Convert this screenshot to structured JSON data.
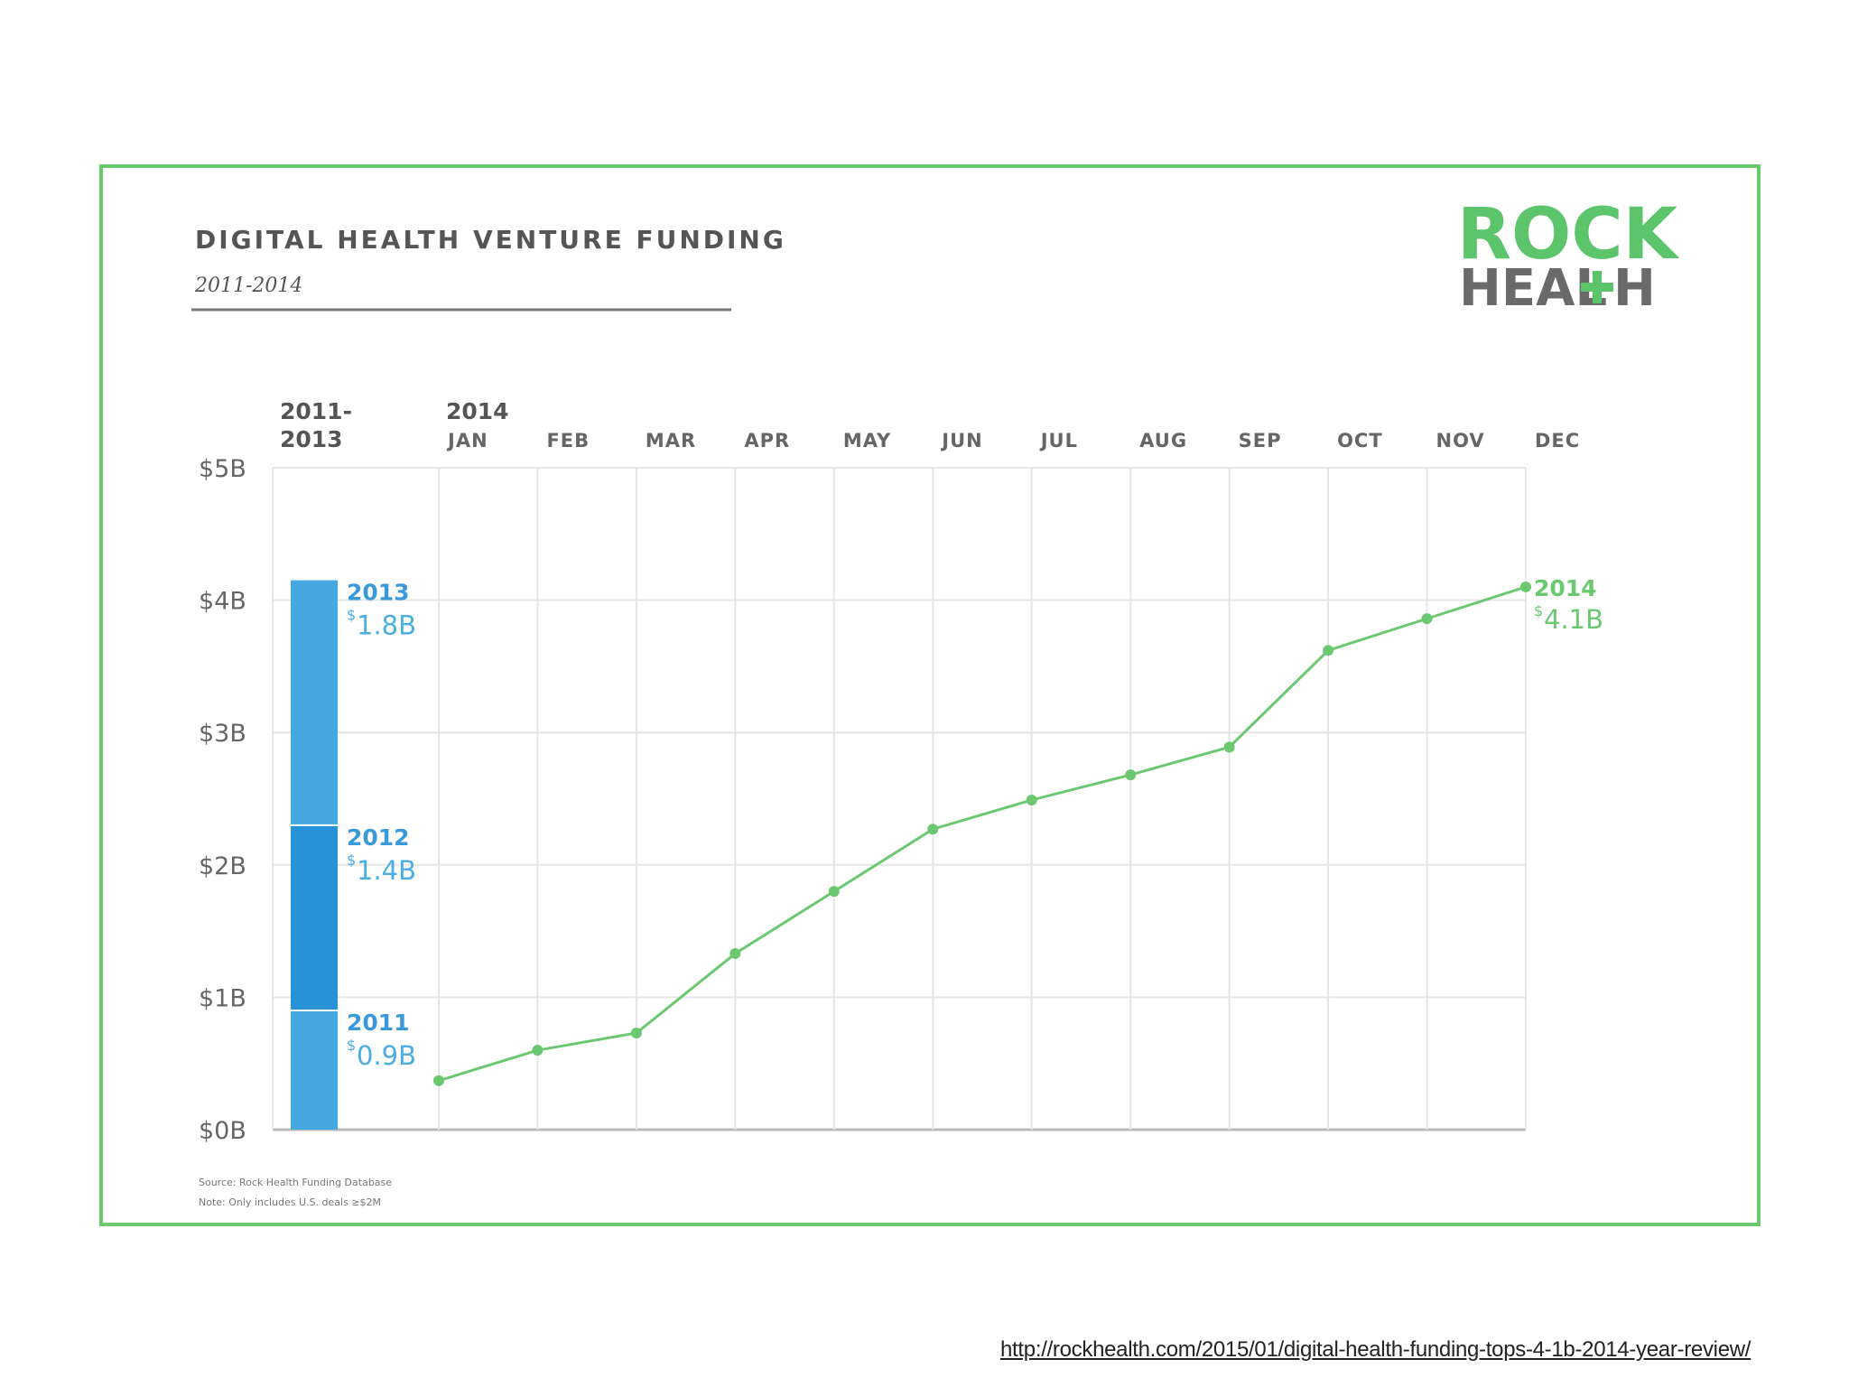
{
  "chart_data": {
    "type": "line",
    "title": "DIGITAL HEALTH VENTURE FUNDING",
    "subtitle": "2011-2014",
    "y_ticks": [
      "$5B",
      "$4B",
      "$3B",
      "$2B",
      "$1B",
      "$0B"
    ],
    "ylim": [
      0,
      5
    ],
    "col_header_stack": [
      "2011-",
      "2013"
    ],
    "col_header_line": "2014",
    "categories": [
      "JAN",
      "FEB",
      "MAR",
      "APR",
      "MAY",
      "JUN",
      "JUL",
      "AUG",
      "SEP",
      "OCT",
      "NOV",
      "DEC"
    ],
    "series": [
      {
        "values": [
          0.37,
          0.6,
          0.73,
          1.33,
          1.8,
          2.27,
          2.49,
          2.68,
          2.89,
          3.62,
          3.86,
          4.1
        ],
        "color": "#6cc870"
      }
    ],
    "end_label": {
      "year": "2014",
      "currency": "$",
      "amount": "4.1B"
    },
    "stacked_bar": {
      "segments": [
        {
          "year": "2011",
          "currency": "$",
          "amount": "0.9B",
          "value": 0.9,
          "color": "#45a9e0"
        },
        {
          "year": "2012",
          "currency": "$",
          "amount": "1.4B",
          "value": 1.4,
          "color": "#2892d6"
        },
        {
          "year": "2013",
          "currency": "$",
          "amount": "1.8B",
          "value": 1.85,
          "color": "#45a9e0"
        }
      ]
    },
    "grid": true,
    "source_note": "Source: Rock Health Funding Database",
    "note": "Note: Only includes U.S. deals ≥$2M"
  },
  "logo": {
    "line1": "ROCK",
    "line2_part1": "HEAL",
    "line2_part2": "H",
    "color_rock": "#5cc46a",
    "color_health": "#6a6a6a"
  },
  "footer": {
    "url": "http://rockhealth.com/2015/01/digital-health-funding-tops-4-1b-2014-year-review/"
  }
}
